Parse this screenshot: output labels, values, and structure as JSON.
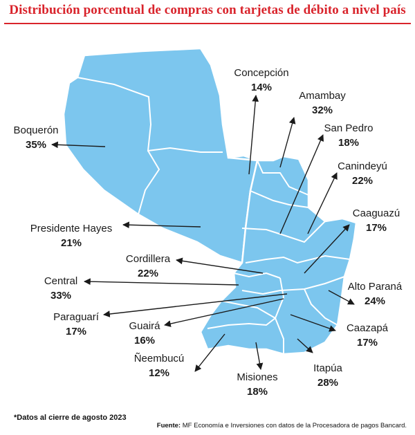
{
  "title": "Distribución porcentual de compras con tarjetas de débito a nivel país",
  "colors": {
    "title": "#d9232b",
    "map_fill": "#7cc6ee",
    "border": "#ffffff",
    "arrow": "#1a1a1a"
  },
  "departments": [
    {
      "key": "concepcion",
      "name": "Concepción",
      "pct": "14%"
    },
    {
      "key": "amambay",
      "name": "Amambay",
      "pct": "32%"
    },
    {
      "key": "sanpedro",
      "name": "San Pedro",
      "pct": "18%"
    },
    {
      "key": "canindeyu",
      "name": "Canindeyú",
      "pct": "22%"
    },
    {
      "key": "caaguazu",
      "name": "Caaguazú",
      "pct": "17%"
    },
    {
      "key": "altoparana",
      "name": "Alto Paraná",
      "pct": "24%"
    },
    {
      "key": "caazapa",
      "name": "Caazapá",
      "pct": "17%"
    },
    {
      "key": "itapua",
      "name": "Itapúa",
      "pct": "28%"
    },
    {
      "key": "misiones",
      "name": "Misiones",
      "pct": "18%"
    },
    {
      "key": "neembucu",
      "name": "Ñeembucú",
      "pct": "12%"
    },
    {
      "key": "guaira",
      "name": "Guairá",
      "pct": "16%"
    },
    {
      "key": "paraguari",
      "name": "Paraguarí",
      "pct": "17%"
    },
    {
      "key": "central",
      "name": "Central",
      "pct": "33%"
    },
    {
      "key": "cordillera",
      "name": "Cordillera",
      "pct": "22%"
    },
    {
      "key": "presidentehayes",
      "name": "Presidente Hayes",
      "pct": "21%"
    },
    {
      "key": "boqueron",
      "name": "Boquerón",
      "pct": "35%"
    }
  ],
  "footer": {
    "note": "*Datos al cierre de agosto 2023",
    "source_label": "Fuente:",
    "source_text": " MF Economía e Inversiones con datos de la Procesadora de pagos Bancard."
  }
}
